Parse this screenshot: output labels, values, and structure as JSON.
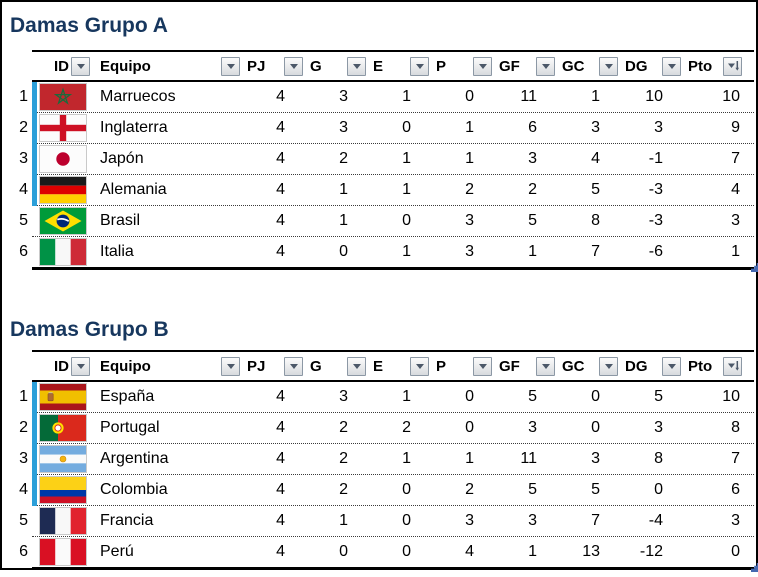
{
  "colors": {
    "title_text": "#17375E",
    "qualify_bar": "#2B9FD9",
    "resize_handle": "#4468B0",
    "filter_arrow": "#4C5869"
  },
  "icons": {
    "filter_dropdown": "down-triangle",
    "sorted_descending_filter": "down-triangle-with-arrow"
  },
  "columns": [
    {
      "key": "id",
      "label": "ID",
      "filter_icon": "dropdown"
    },
    {
      "key": "equipo",
      "label": "Equipo",
      "filter_icon": "dropdown"
    },
    {
      "key": "pj",
      "label": "PJ",
      "filter_icon": "dropdown"
    },
    {
      "key": "g",
      "label": "G",
      "filter_icon": "dropdown"
    },
    {
      "key": "e",
      "label": "E",
      "filter_icon": "dropdown"
    },
    {
      "key": "p",
      "label": "P",
      "filter_icon": "dropdown"
    },
    {
      "key": "gf",
      "label": "GF",
      "filter_icon": "dropdown"
    },
    {
      "key": "gc",
      "label": "GC",
      "filter_icon": "dropdown"
    },
    {
      "key": "dg",
      "label": "DG",
      "filter_icon": "dropdown"
    },
    {
      "key": "pto",
      "label": "Pto",
      "filter_icon": "sorted-descending"
    }
  ],
  "groups": [
    {
      "title": "Damas Grupo A",
      "qualified_rows": 4,
      "rows": [
        {
          "rank": 1,
          "flag": "morocco",
          "team": "Marruecos",
          "pj": 4,
          "g": 3,
          "e": 1,
          "p": 0,
          "gf": 11,
          "gc": 1,
          "dg": 10,
          "pto": 10
        },
        {
          "rank": 2,
          "flag": "england",
          "team": "Inglaterra",
          "pj": 4,
          "g": 3,
          "e": 0,
          "p": 1,
          "gf": 6,
          "gc": 3,
          "dg": 3,
          "pto": 9
        },
        {
          "rank": 3,
          "flag": "japan",
          "team": "Japón",
          "pj": 4,
          "g": 2,
          "e": 1,
          "p": 1,
          "gf": 3,
          "gc": 4,
          "dg": -1,
          "pto": 7
        },
        {
          "rank": 4,
          "flag": "germany",
          "team": "Alemania",
          "pj": 4,
          "g": 1,
          "e": 1,
          "p": 2,
          "gf": 2,
          "gc": 5,
          "dg": -3,
          "pto": 4
        },
        {
          "rank": 5,
          "flag": "brazil",
          "team": "Brasil",
          "pj": 4,
          "g": 1,
          "e": 0,
          "p": 3,
          "gf": 5,
          "gc": 8,
          "dg": -3,
          "pto": 3
        },
        {
          "rank": 6,
          "flag": "italy",
          "team": "Italia",
          "pj": 4,
          "g": 0,
          "e": 1,
          "p": 3,
          "gf": 1,
          "gc": 7,
          "dg": -6,
          "pto": 1
        }
      ]
    },
    {
      "title": "Damas Grupo B",
      "qualified_rows": 4,
      "rows": [
        {
          "rank": 1,
          "flag": "spain",
          "team": "España",
          "pj": 4,
          "g": 3,
          "e": 1,
          "p": 0,
          "gf": 5,
          "gc": 0,
          "dg": 5,
          "pto": 10
        },
        {
          "rank": 2,
          "flag": "portugal",
          "team": "Portugal",
          "pj": 4,
          "g": 2,
          "e": 2,
          "p": 0,
          "gf": 3,
          "gc": 0,
          "dg": 3,
          "pto": 8
        },
        {
          "rank": 3,
          "flag": "argentina",
          "team": "Argentina",
          "pj": 4,
          "g": 2,
          "e": 1,
          "p": 1,
          "gf": 11,
          "gc": 3,
          "dg": 8,
          "pto": 7
        },
        {
          "rank": 4,
          "flag": "colombia",
          "team": "Colombia",
          "pj": 4,
          "g": 2,
          "e": 0,
          "p": 2,
          "gf": 5,
          "gc": 5,
          "dg": 0,
          "pto": 6
        },
        {
          "rank": 5,
          "flag": "france",
          "team": "Francia",
          "pj": 4,
          "g": 1,
          "e": 0,
          "p": 3,
          "gf": 3,
          "gc": 7,
          "dg": -4,
          "pto": 3
        },
        {
          "rank": 6,
          "flag": "peru",
          "team": "Perú",
          "pj": 4,
          "g": 0,
          "e": 0,
          "p": 4,
          "gf": 1,
          "gc": 13,
          "dg": -12,
          "pto": 0
        }
      ]
    }
  ]
}
